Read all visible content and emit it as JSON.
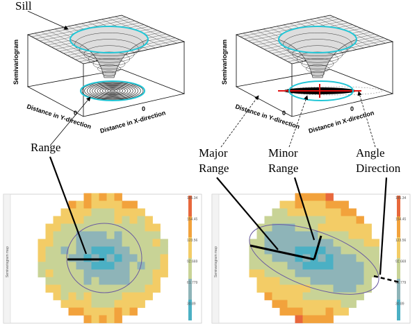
{
  "top_left": {
    "annotation": "Sill",
    "z_label": "Semivariogram",
    "y_label": "Distance in Y-direction",
    "x_label": "Distance in X-direction",
    "tick_y": "0",
    "tick_x": "0"
  },
  "top_right": {
    "z_label": "Semivariogram",
    "y_label": "Distance in Y-direction",
    "x_label": "Distance in X-direction",
    "tick_y": "0",
    "tick_x": "0"
  },
  "callouts": {
    "range": "Range",
    "major_range": [
      "Major",
      "Range"
    ],
    "minor_range": [
      "Minor",
      "Range"
    ],
    "angle_direction": [
      "Angle",
      "Direction"
    ]
  },
  "maps": [
    {
      "side_label": "Semivariogram map",
      "colorbar_labels": [
        "185.34",
        "154.45",
        "123.56",
        "92.669",
        "61.779",
        "30.89"
      ]
    },
    {
      "side_label": "Semivariogram map",
      "colorbar_labels": [
        "185.34",
        "154.45",
        "123.56",
        "92.669",
        "61.779",
        "30.89"
      ]
    }
  ]
}
